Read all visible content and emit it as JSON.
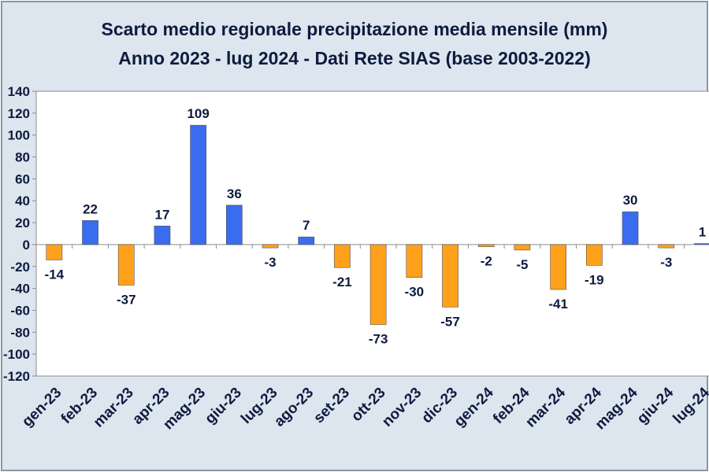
{
  "chart_data": {
    "type": "bar",
    "title": "Scarto medio regionale precipitazione media mensile (mm)",
    "subtitle": "Anno 2023 -  lug 2024 - Dati Rete SIAS (base 2003-2022)",
    "categories": [
      "gen-23",
      "feb-23",
      "mar-23",
      "apr-23",
      "mag-23",
      "giu-23",
      "lug-23",
      "ago-23",
      "set-23",
      "ott-23",
      "nov-23",
      "dic-23",
      "gen-24",
      "feb-24",
      "mar-24",
      "apr-24",
      "mag-24",
      "giu-24",
      "lug-24"
    ],
    "values": [
      -14,
      22,
      -37,
      17,
      109,
      36,
      -3,
      7,
      -21,
      -73,
      -30,
      -57,
      -2,
      -5,
      -41,
      -19,
      30,
      -3,
      1
    ],
    "positive_color": "#3a6cf0",
    "negative_color": "#ffa11a",
    "ylim": [
      -120,
      140
    ],
    "yticks": [
      -120,
      -100,
      -80,
      -60,
      -40,
      -20,
      0,
      20,
      40,
      60,
      80,
      100,
      120,
      140
    ],
    "grid": false
  }
}
